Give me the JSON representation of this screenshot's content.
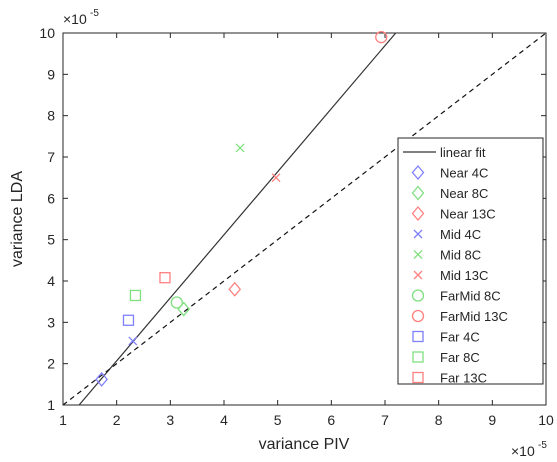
{
  "chart_data": {
    "type": "scatter",
    "xlabel": "variance PIV",
    "ylabel": "variance LDA",
    "x_exponent": "×10",
    "x_exponent_power": "-5",
    "y_exponent": "×10",
    "y_exponent_power": "-5",
    "xlim": [
      1,
      10
    ],
    "ylim": [
      1,
      10
    ],
    "x_ticks": [
      "1",
      "2",
      "3",
      "4",
      "5",
      "6",
      "7",
      "8",
      "9",
      "10"
    ],
    "y_ticks": [
      "1",
      "2",
      "3",
      "4",
      "5",
      "6",
      "7",
      "8",
      "9",
      "10"
    ],
    "grid": false,
    "legend_position": "right",
    "lines": [
      {
        "name": "linear fit",
        "style": "solid",
        "color": "#333333",
        "x": [
          1.3,
          7.2
        ],
        "y": [
          1.0,
          10.0
        ]
      },
      {
        "name": "",
        "style": "dashed",
        "color": "#111111",
        "x": [
          1.0,
          10.0
        ],
        "y": [
          1.0,
          10.0
        ]
      }
    ],
    "series": [
      {
        "name": "Near 4C",
        "marker": "diamond",
        "color": "#8080ff",
        "x": [
          1.72
        ],
        "y": [
          1.62
        ]
      },
      {
        "name": "Near 8C",
        "marker": "diamond",
        "color": "#80e080",
        "x": [
          3.25
        ],
        "y": [
          3.32
        ]
      },
      {
        "name": "Near 13C",
        "marker": "diamond",
        "color": "#ff8080",
        "x": [
          4.2
        ],
        "y": [
          3.8
        ]
      },
      {
        "name": "Mid 4C",
        "marker": "x",
        "color": "#8080ff",
        "x": [
          2.3
        ],
        "y": [
          2.55
        ]
      },
      {
        "name": "Mid 8C",
        "marker": "x",
        "color": "#80e080",
        "x": [
          4.3
        ],
        "y": [
          7.22
        ]
      },
      {
        "name": "Mid 13C",
        "marker": "x",
        "color": "#ff8080",
        "x": [
          4.97
        ],
        "y": [
          6.5
        ]
      },
      {
        "name": "FarMid 8C",
        "marker": "circle",
        "color": "#80e080",
        "x": [
          3.12
        ],
        "y": [
          3.48
        ]
      },
      {
        "name": "FarMid 13C",
        "marker": "circle",
        "color": "#ff8080",
        "x": [
          6.93
        ],
        "y": [
          9.9
        ]
      },
      {
        "name": "Far 4C",
        "marker": "square",
        "color": "#8080ff",
        "x": [
          2.22
        ],
        "y": [
          3.05
        ]
      },
      {
        "name": "Far 8C",
        "marker": "square",
        "color": "#80e080",
        "x": [
          2.35
        ],
        "y": [
          3.65
        ]
      },
      {
        "name": "Far 13C",
        "marker": "square",
        "color": "#ff8080",
        "x": [
          2.9
        ],
        "y": [
          4.08
        ]
      }
    ]
  }
}
